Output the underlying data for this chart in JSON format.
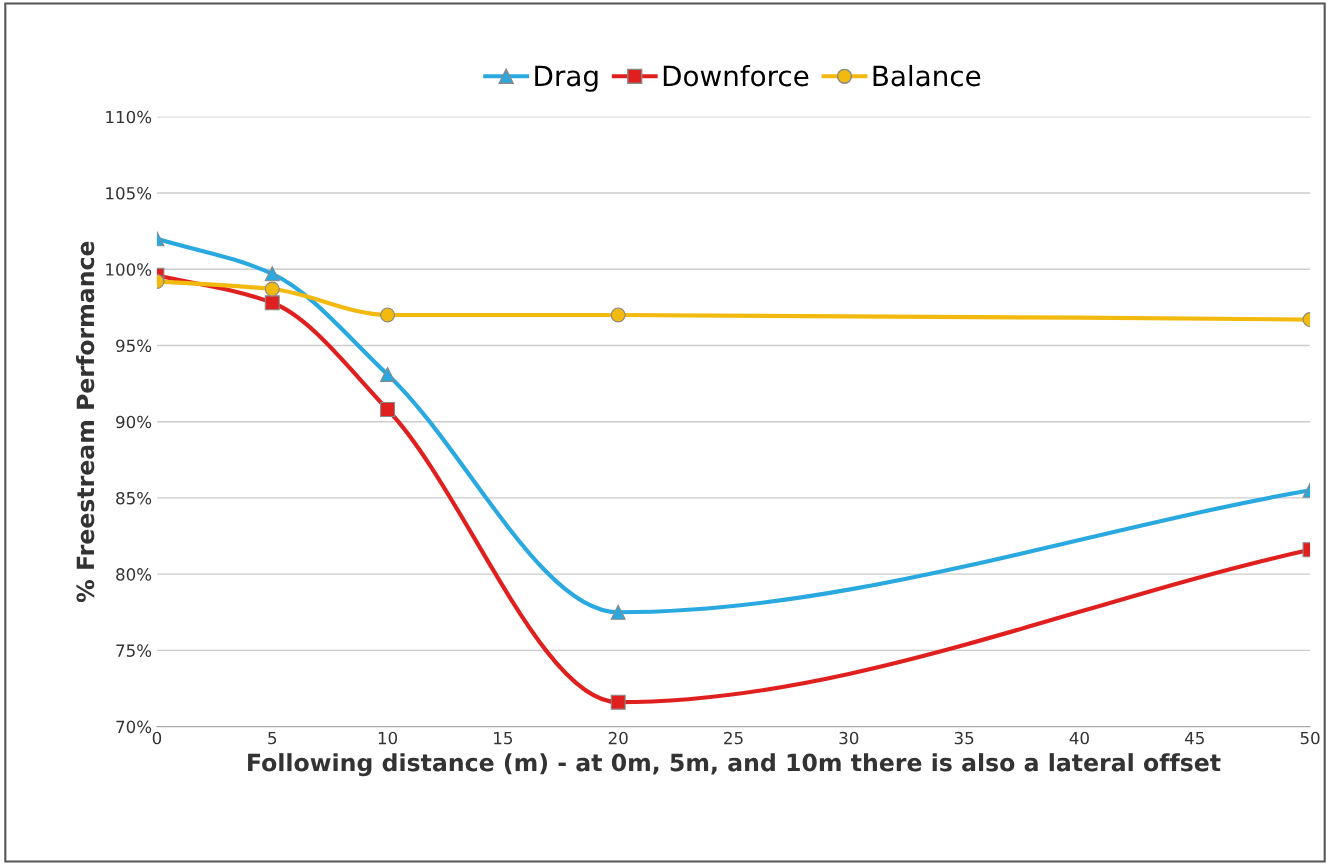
{
  "chart_data": {
    "type": "line",
    "xlabel": "Following distance (m) - at 0m, 5m, and 10m there is also a lateral offset",
    "ylabel": "% Freestream Performance",
    "x": [
      0,
      5,
      10,
      20,
      50
    ],
    "series": [
      {
        "name": "Drag",
        "color": "#29a9e0",
        "marker": "triangle",
        "values": [
          102.0,
          99.7,
          93.1,
          77.5,
          85.5
        ]
      },
      {
        "name": "Downforce",
        "color": "#e0201e",
        "marker": "square",
        "values": [
          99.6,
          97.8,
          90.8,
          71.6,
          81.6
        ]
      },
      {
        "name": "Balance",
        "color": "#f2b90f",
        "marker": "circle",
        "values": [
          99.2,
          98.7,
          97.0,
          97.0,
          96.7
        ]
      }
    ],
    "xlim": [
      0,
      50
    ],
    "xticks": [
      0,
      5,
      10,
      15,
      20,
      25,
      30,
      35,
      40,
      45,
      50
    ],
    "ylim": [
      70,
      110
    ],
    "yticks": [
      {
        "value": 70,
        "label": "70%"
      },
      {
        "value": 75,
        "label": "75%"
      },
      {
        "value": 80,
        "label": "80%"
      },
      {
        "value": 85,
        "label": "85%"
      },
      {
        "value": 90,
        "label": "90%"
      },
      {
        "value": 95,
        "label": "95%"
      },
      {
        "value": 100,
        "label": "100%"
      },
      {
        "value": 105,
        "label": "105%"
      },
      {
        "value": 110,
        "label": "110%"
      }
    ],
    "grid": "y",
    "legend": "top",
    "line_style": "solid"
  }
}
